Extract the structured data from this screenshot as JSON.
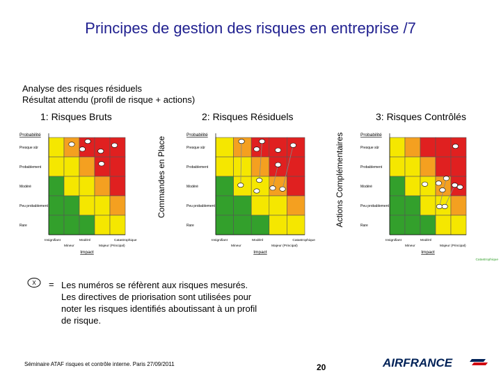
{
  "title": "Principes de gestion des risques en entreprise /7",
  "subtitle_line1": "Analyse des risques résiduels",
  "subtitle_line2": "Résultat attendu  (profil de risque + actions)",
  "sections": {
    "bruts": "1: Risques Bruts",
    "residuels": "2: Risques Résiduels",
    "controles": "3: Risques Contrôlés"
  },
  "vertical_labels": {
    "commandes": "Commandes en Place",
    "actions": "Actions Complémentaires"
  },
  "legend": {
    "symbol": "X",
    "equals": "=",
    "line1": "Les numéros se réfèrent aux risques mesurés.",
    "line2": "Les directives de priorisation sont utilisées pour",
    "line3": "noter les risques identifiés aboutissant à un profil",
    "line4": "de risque."
  },
  "footer": "Séminaire ATAF risques et contrôle interne. Paris 27/09/2011",
  "page_number": "20",
  "logo_text": "AIRFRANCE",
  "colors": {
    "title": "#1f1f8f",
    "green": "#33a02c",
    "yellow": "#f5e700",
    "orange": "#f4a020",
    "red": "#e02020",
    "logo_blue": "#002157",
    "logo_red": "#d00010"
  },
  "grids": [
    {
      "id": "bruts",
      "y_title": "Probabilité",
      "rows": [
        "Presque sûr",
        "Probablement",
        "Modéré",
        "Peu probablement",
        "Rare"
      ],
      "x_top": [
        "Insignifiant",
        "Modéré",
        "Catastrophique"
      ],
      "x_bottom": [
        "Mineur",
        "Majeur (Principal)"
      ],
      "x_title": "Impact",
      "markers": [
        {
          "row": 0,
          "col": 1,
          "fx": 0.5,
          "fy": 0.35
        },
        {
          "row": 0,
          "col": 2,
          "fx": 0.55,
          "fy": 0.2
        },
        {
          "row": 0,
          "col": 2,
          "fx": 0.2,
          "fy": 0.6
        },
        {
          "row": 0,
          "col": 3,
          "fx": 0.4,
          "fy": 0.7
        },
        {
          "row": 0,
          "col": 4,
          "fx": 0.3,
          "fy": 0.4
        },
        {
          "row": 1,
          "col": 3,
          "fx": 0.45,
          "fy": 0.35
        }
      ],
      "arrows": []
    },
    {
      "id": "residuels",
      "y_title": "Probabilité",
      "rows": [
        "Presque sûr",
        "Probablement",
        "Modéré",
        "Peu probablement",
        "Rare"
      ],
      "x_top": [
        "Insignifiant",
        "Modéré",
        "Catastrophique"
      ],
      "x_bottom": [
        "Mineur",
        "Majeur (Principal)"
      ],
      "x_title": "Impact",
      "markers": [
        {
          "row": 0,
          "col": 1,
          "fx": 0.45,
          "fy": 0.2
        },
        {
          "row": 0,
          "col": 2,
          "fx": 0.6,
          "fy": 0.2
        },
        {
          "row": 0,
          "col": 2,
          "fx": 0.3,
          "fy": 0.6
        },
        {
          "row": 0,
          "col": 3,
          "fx": 0.5,
          "fy": 0.65
        },
        {
          "row": 0,
          "col": 4,
          "fx": 0.35,
          "fy": 0.4
        },
        {
          "row": 1,
          "col": 3,
          "fx": 0.5,
          "fy": 0.4
        },
        {
          "row": 2,
          "col": 1,
          "fx": 0.4,
          "fy": 0.45
        },
        {
          "row": 2,
          "col": 2,
          "fx": 0.45,
          "fy": 0.2
        },
        {
          "row": 2,
          "col": 2,
          "fx": 0.3,
          "fy": 0.75
        },
        {
          "row": 2,
          "col": 3,
          "fx": 0.2,
          "fy": 0.6
        },
        {
          "row": 2,
          "col": 3,
          "fx": 0.75,
          "fy": 0.65
        }
      ],
      "arrows": [
        {
          "from": [
            0,
            0
          ],
          "to": [
            6,
            0
          ]
        },
        {
          "from": [
            1,
            0
          ],
          "to": [
            7,
            0
          ]
        },
        {
          "from": [
            4,
            0
          ],
          "to": [
            10,
            0
          ]
        },
        {
          "from": [
            5,
            0
          ],
          "to": [
            9,
            0
          ]
        }
      ]
    },
    {
      "id": "controles",
      "y_title": "Probabilité",
      "rows": [
        "Presque sûr",
        "Probablement",
        "Modéré",
        "Peu probablement",
        "Rare"
      ],
      "x_top": [
        "Insignifiant",
        "Modéré"
      ],
      "x_bottom": [
        "Mineur",
        "Majeur (Principal)"
      ],
      "x_title": "Impact",
      "x_extra": "Catastrophique",
      "markers": [
        {
          "row": 0,
          "col": 4,
          "fx": 0.3,
          "fy": 0.45
        },
        {
          "row": 2,
          "col": 2,
          "fx": 0.3,
          "fy": 0.4
        },
        {
          "row": 2,
          "col": 3,
          "fx": 0.2,
          "fy": 0.35
        },
        {
          "row": 2,
          "col": 3,
          "fx": 0.7,
          "fy": 0.1
        },
        {
          "row": 2,
          "col": 3,
          "fx": 0.45,
          "fy": 0.7
        },
        {
          "row": 2,
          "col": 4,
          "fx": 0.25,
          "fy": 0.45
        },
        {
          "row": 2,
          "col": 4,
          "fx": 0.6,
          "fy": 0.55
        },
        {
          "row": 3,
          "col": 3,
          "fx": 0.25,
          "fy": 0.55
        },
        {
          "row": 3,
          "col": 3,
          "fx": 0.6,
          "fy": 0.55
        }
      ],
      "arrows": [
        {
          "from": [
            3,
            0
          ],
          "to": [
            7,
            0
          ]
        },
        {
          "from": [
            5,
            0
          ],
          "to": [
            8,
            0
          ]
        }
      ]
    }
  ],
  "cell_colors": [
    [
      "yellow",
      "orange",
      "red",
      "red",
      "red"
    ],
    [
      "yellow",
      "yellow",
      "orange",
      "red",
      "red"
    ],
    [
      "green",
      "yellow",
      "yellow",
      "orange",
      "red"
    ],
    [
      "green",
      "green",
      "yellow",
      "yellow",
      "orange"
    ],
    [
      "green",
      "green",
      "green",
      "yellow",
      "yellow"
    ]
  ]
}
